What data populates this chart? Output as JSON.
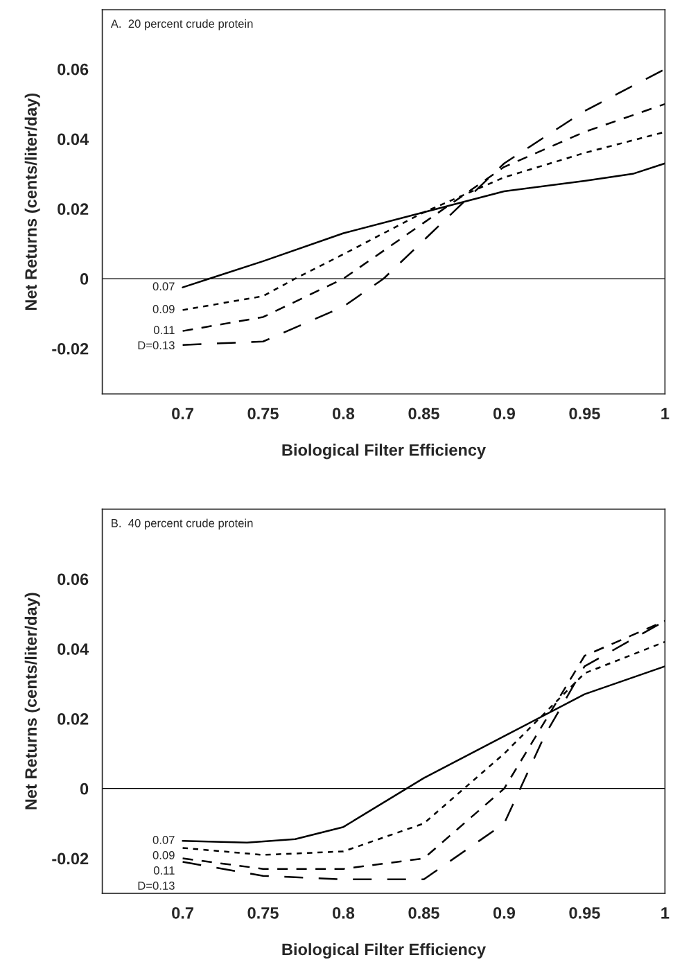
{
  "chart_data": [
    {
      "type": "line",
      "title": "A.  20 percent crude protein",
      "xlabel": "Biological Filter Efficiency",
      "ylabel": "Net Returns (cents/liter/day)",
      "xlim": [
        0.65,
        1
      ],
      "xticks": [
        0.7,
        0.75,
        0.8,
        0.85,
        0.9,
        0.95,
        1
      ],
      "ylim": [
        -0.033,
        0.077
      ],
      "yticks": [
        -0.02,
        0,
        0.02,
        0.04,
        0.06
      ],
      "grid": false,
      "legend": false,
      "ref_lines": [
        {
          "axis": "y",
          "value": 0,
          "color": "#000000",
          "line_style": "solid"
        }
      ],
      "series": [
        {
          "name": "0.07",
          "color": "#000000",
          "line_style": "solid",
          "x": [
            0.7,
            0.72,
            0.75,
            0.8,
            0.85,
            0.9,
            0.95,
            0.98,
            1
          ],
          "values": [
            -0.0025,
            0.0005,
            0.005,
            0.013,
            0.019,
            0.025,
            0.028,
            0.03,
            0.033
          ]
        },
        {
          "name": "0.09",
          "color": "#000000",
          "line_style": "dotted",
          "x": [
            0.7,
            0.75,
            0.77,
            0.8,
            0.85,
            0.9,
            0.95,
            1
          ],
          "values": [
            -0.009,
            -0.005,
            0,
            0.007,
            0.019,
            0.029,
            0.036,
            0.042
          ]
        },
        {
          "name": "0.11",
          "color": "#000000",
          "line_style": "dashed",
          "x": [
            0.7,
            0.75,
            0.8,
            0.85,
            0.9,
            0.95,
            1
          ],
          "values": [
            -0.015,
            -0.011,
            0,
            0.016,
            0.032,
            0.042,
            0.05
          ]
        },
        {
          "name": "D=0.13",
          "color": "#000000",
          "line_style": "dashed",
          "x": [
            0.7,
            0.75,
            0.8,
            0.825,
            0.85,
            0.9,
            0.95,
            1
          ],
          "values": [
            -0.019,
            -0.018,
            -0.008,
            0,
            0.011,
            0.033,
            0.048,
            0.06
          ]
        }
      ]
    },
    {
      "type": "line",
      "title": "B.  40 percent crude protein",
      "xlabel": "Biological Filter Efficiency",
      "ylabel": "Net Returns (cents/liter/day)",
      "xlim": [
        0.65,
        1
      ],
      "xticks": [
        0.7,
        0.75,
        0.8,
        0.85,
        0.9,
        0.95,
        1
      ],
      "ylim": [
        -0.03,
        0.08
      ],
      "yticks": [
        -0.02,
        0,
        0.02,
        0.04,
        0.06
      ],
      "grid": false,
      "legend": false,
      "ref_lines": [
        {
          "axis": "y",
          "value": 0,
          "color": "#000000",
          "line_style": "solid"
        }
      ],
      "series": [
        {
          "name": "0.07",
          "color": "#000000",
          "line_style": "solid",
          "x": [
            0.7,
            0.74,
            0.77,
            0.8,
            0.85,
            0.9,
            0.95,
            1
          ],
          "values": [
            -0.015,
            -0.0155,
            -0.0145,
            -0.011,
            0.003,
            0.015,
            0.027,
            0.035
          ]
        },
        {
          "name": "0.09",
          "color": "#000000",
          "line_style": "dotted",
          "x": [
            0.7,
            0.75,
            0.8,
            0.85,
            0.9,
            0.95,
            1
          ],
          "values": [
            -0.017,
            -0.019,
            -0.018,
            -0.01,
            0.01,
            0.033,
            0.042
          ]
        },
        {
          "name": "0.11",
          "color": "#000000",
          "line_style": "dashed",
          "x": [
            0.7,
            0.75,
            0.8,
            0.85,
            0.9,
            0.95,
            1
          ],
          "values": [
            -0.02,
            -0.023,
            -0.023,
            -0.02,
            0,
            0.038,
            0.048
          ]
        },
        {
          "name": "D=0.13",
          "color": "#000000",
          "line_style": "dashed",
          "x": [
            0.7,
            0.75,
            0.8,
            0.85,
            0.9,
            0.925,
            0.95,
            1
          ],
          "values": [
            -0.021,
            -0.025,
            -0.026,
            -0.026,
            -0.01,
            0.015,
            0.035,
            0.048
          ]
        }
      ]
    }
  ]
}
